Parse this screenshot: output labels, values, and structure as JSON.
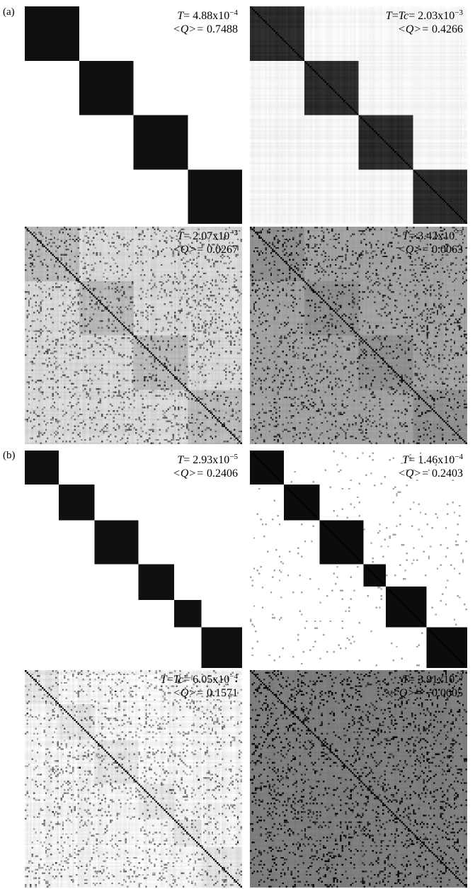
{
  "sections": [
    {
      "label": "(a)",
      "panels": [
        {
          "t_prefix": "T",
          "t_tc": "",
          "t_mantissa": "4.88x10",
          "t_exp": "−4",
          "q_value": "0.7488",
          "matrix": {
            "bg": "#ffffff",
            "block_fill": "#101010",
            "diag": "#101010",
            "blocks": [
              0.25,
              0.25,
              0.25,
              0.25
            ],
            "noise": 0.0,
            "texture": 0.0,
            "offblock": "#ffffff"
          }
        },
        {
          "t_prefix": "T",
          "t_tc": "Tc",
          "t_mantissa": "2.03x10",
          "t_exp": "−3",
          "q_value": "0.4266",
          "matrix": {
            "bg": "#f7f7f7",
            "block_fill": "#2a2a2a",
            "diag": "#000000",
            "blocks": [
              0.25,
              0.25,
              0.25,
              0.25
            ],
            "noise": 0.0,
            "texture": 0.08,
            "offblock": "#f5f5f5"
          }
        },
        {
          "t_prefix": "T",
          "t_tc": "",
          "t_mantissa": "2.07x10",
          "t_exp": "−3",
          "q_value": "0.0267",
          "matrix": {
            "bg": "#d8d8d8",
            "block_fill": "#b8b8b8",
            "diag": "#000000",
            "blocks": [
              0.25,
              0.25,
              0.25,
              0.25
            ],
            "noise": 0.12,
            "texture": 0.1,
            "offblock": "#d6d6d6"
          }
        },
        {
          "t_prefix": "T",
          "t_tc": "",
          "t_mantissa": "3.42x10",
          "t_exp": "−3",
          "q_value": "0.0063",
          "matrix": {
            "bg": "#a3a3a3",
            "block_fill": "#8f8f8f",
            "diag": "#000000",
            "blocks": [
              0.25,
              0.25,
              0.25,
              0.25
            ],
            "noise": 0.12,
            "texture": 0.06,
            "offblock": "#a1a1a1"
          }
        }
      ]
    },
    {
      "label": "(b)",
      "panels": [
        {
          "t_prefix": "T",
          "t_tc": "",
          "t_mantissa": "2.93x10",
          "t_exp": "−5",
          "q_value": "0.2406",
          "matrix": {
            "bg": "#ffffff",
            "block_fill": "#101010",
            "diag": "#101010",
            "blocks": [
              0.155,
              0.165,
              0.2,
              0.165,
              0.13,
              0.185
            ],
            "noise": 0.0,
            "texture": 0.0,
            "offblock": "#ffffff"
          }
        },
        {
          "t_prefix": "T",
          "t_tc": "",
          "t_mantissa": "1.46x10",
          "t_exp": "−4",
          "q_value": "0.2403",
          "matrix": {
            "bg": "#ffffff",
            "block_fill": "#0c0c0c",
            "diag": "#000000",
            "blocks": [
              0.155,
              0.165,
              0.2,
              0.105,
              0.185,
              0.19
            ],
            "noise": 0.0,
            "texture": 0.0,
            "offblock": "#ffffff",
            "streaks": true
          }
        },
        {
          "t_prefix": "T",
          "t_tc": "Tc",
          "t_mantissa": "6.05x10",
          "t_exp": "−4",
          "q_value": "0.1571",
          "matrix": {
            "bg": "#f4f4f4",
            "block_fill": "#e2e2e2",
            "diag": "#000000",
            "blocks": [
              0.155,
              0.165,
              0.2,
              0.165,
              0.13,
              0.185
            ],
            "noise": 0.1,
            "texture": 0.12,
            "offblock": "#f2f2f2",
            "streaks": true
          }
        },
        {
          "t_prefix": "T",
          "t_tc": "",
          "t_mantissa": "3.91x10",
          "t_exp": "−3",
          "q_value": "−0.0005",
          "matrix": {
            "bg": "#7d7d7d",
            "block_fill": "#7d7d7d",
            "diag": "#000000",
            "blocks": [
              1.0
            ],
            "noise": 0.14,
            "texture": 0.05,
            "offblock": "#7d7d7d"
          }
        }
      ]
    }
  ],
  "q_prefix": "<Q>= "
}
